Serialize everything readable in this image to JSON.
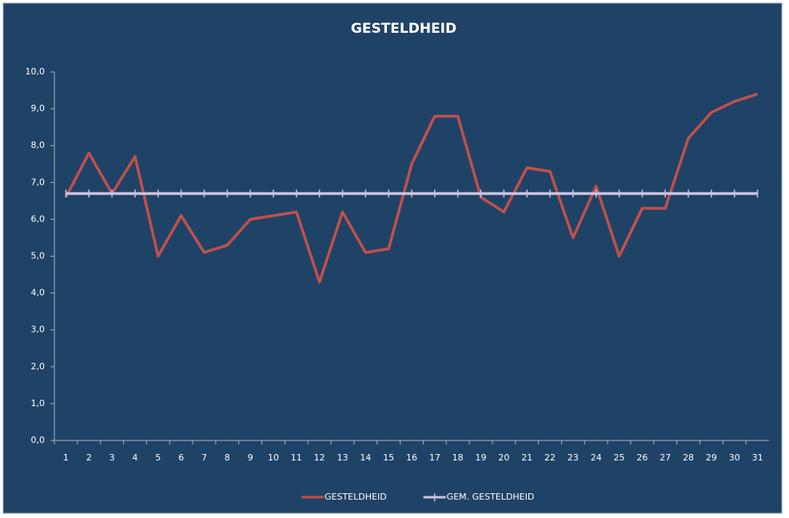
{
  "chart_data": {
    "type": "line",
    "title": "GESTELDHEID",
    "categories": [
      "1",
      "2",
      "3",
      "4",
      "5",
      "6",
      "7",
      "8",
      "9",
      "10",
      "11",
      "12",
      "13",
      "14",
      "15",
      "16",
      "17",
      "18",
      "19",
      "20",
      "21",
      "22",
      "23",
      "24",
      "25",
      "26",
      "27",
      "28",
      "29",
      "30",
      "31"
    ],
    "series": [
      {
        "name": "GESTELDHEID",
        "color": "#c0504d",
        "marker": false,
        "values": [
          6.6,
          7.8,
          6.7,
          7.7,
          5.0,
          6.1,
          5.1,
          5.3,
          6.0,
          6.1,
          6.2,
          4.3,
          6.2,
          5.1,
          5.2,
          7.5,
          8.8,
          8.8,
          6.6,
          6.2,
          7.4,
          7.3,
          5.5,
          6.9,
          5.0,
          6.3,
          6.3,
          8.2,
          8.9,
          9.2,
          9.4
        ]
      },
      {
        "name": "GEM. GESTELDHEID",
        "color": "#c9c3e0",
        "marker": true,
        "values": [
          6.7,
          6.7,
          6.7,
          6.7,
          6.7,
          6.7,
          6.7,
          6.7,
          6.7,
          6.7,
          6.7,
          6.7,
          6.7,
          6.7,
          6.7,
          6.7,
          6.7,
          6.7,
          6.7,
          6.7,
          6.7,
          6.7,
          6.7,
          6.7,
          6.7,
          6.7,
          6.7,
          6.7,
          6.7,
          6.7,
          6.7
        ]
      }
    ],
    "ylim": [
      0,
      10
    ],
    "yticks": [
      {
        "value": 0,
        "label": "0,0"
      },
      {
        "value": 1,
        "label": "1,0"
      },
      {
        "value": 2,
        "label": "2,0"
      },
      {
        "value": 3,
        "label": "3,0"
      },
      {
        "value": 4,
        "label": "4,0"
      },
      {
        "value": 5,
        "label": "5,0"
      },
      {
        "value": 6,
        "label": "6,0"
      },
      {
        "value": 7,
        "label": "7,0"
      },
      {
        "value": 8,
        "label": "8,0"
      },
      {
        "value": 9,
        "label": "9,0"
      },
      {
        "value": 10,
        "label": "10,0"
      }
    ],
    "grid": false,
    "legend": "bottom"
  }
}
